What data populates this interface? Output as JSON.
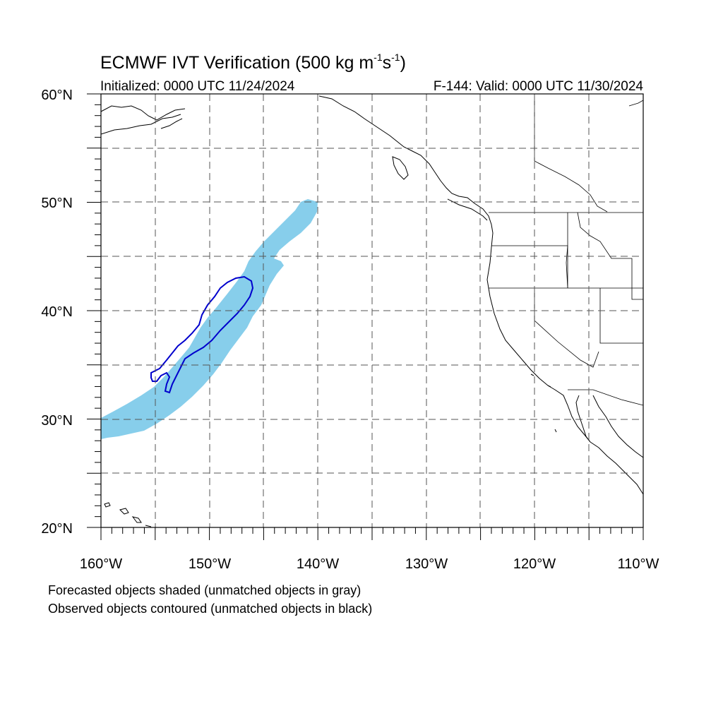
{
  "figure": {
    "title_main": "ECMWF IVT Verification (500 kg m",
    "title_exp1": "-1",
    "title_mid": "s",
    "title_exp2": "-1",
    "title_close": ")",
    "initialized": "Initialized: 0000 UTC 11/24/2024",
    "valid": "F-144: Valid: 0000 UTC 11/30/2024"
  },
  "map": {
    "lon_range": [
      -160,
      -110
    ],
    "lat_range": [
      20,
      60
    ],
    "lat_tick_labels": [
      "60°N",
      "50°N",
      "40°N",
      "30°N",
      "20°N"
    ],
    "lon_tick_labels": [
      "160°W",
      "150°W",
      "140°W",
      "130°W",
      "120°W",
      "110°W"
    ],
    "colors": {
      "forecast_fill": "#87ceeb",
      "observed_contour": "#0000cd",
      "coastline": "#000000",
      "grid": "#555555"
    }
  },
  "legend": {
    "line1": "Forecasted objects shaded (unmatched objects in gray)",
    "line2": "Observed objects contoured (unmatched objects in black)"
  }
}
